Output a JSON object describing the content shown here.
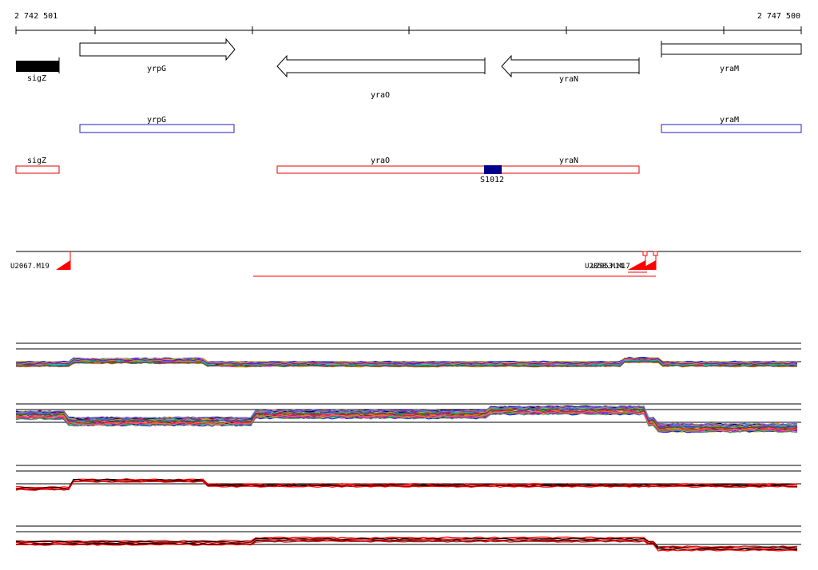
{
  "ruler": {
    "start_label": "2 742 501",
    "end_label": "2 747 500"
  },
  "genes": [
    {
      "id": "sigZ",
      "label": "sigZ",
      "strand": "+",
      "filled": true
    },
    {
      "id": "yrpG",
      "label": "yrpG",
      "strand": "+",
      "filled": false
    },
    {
      "id": "yraO",
      "label": "yraO",
      "strand": "-",
      "filled": false
    },
    {
      "id": "yraN",
      "label": "yraN",
      "strand": "-",
      "filled": false
    },
    {
      "id": "yraM",
      "label": "yraM",
      "strand": "+",
      "filled": false
    }
  ],
  "blue_track": [
    {
      "label": "yrpG"
    },
    {
      "label": "yraM"
    }
  ],
  "red_track": [
    {
      "label": "sigZ"
    },
    {
      "label": "yraO"
    },
    {
      "label": "yraN"
    }
  ],
  "feature_marker": {
    "label": "S1012",
    "color": "#00008b"
  },
  "promoters": [
    {
      "label": "U2067.M19"
    },
    {
      "label": "U2058.M14"
    },
    {
      "label": "U2053.M17"
    }
  ],
  "colors": {
    "gene_outline": "#000000",
    "blue_track": "#1f1fbf",
    "red_track": "#e00000",
    "promoter": "#ff0000"
  },
  "expression_panels": [
    {
      "id": "panel-1",
      "style": "multicolor"
    },
    {
      "id": "panel-2",
      "style": "multicolor"
    },
    {
      "id": "panel-3",
      "style": "red-black"
    },
    {
      "id": "panel-4",
      "style": "red-black"
    }
  ]
}
